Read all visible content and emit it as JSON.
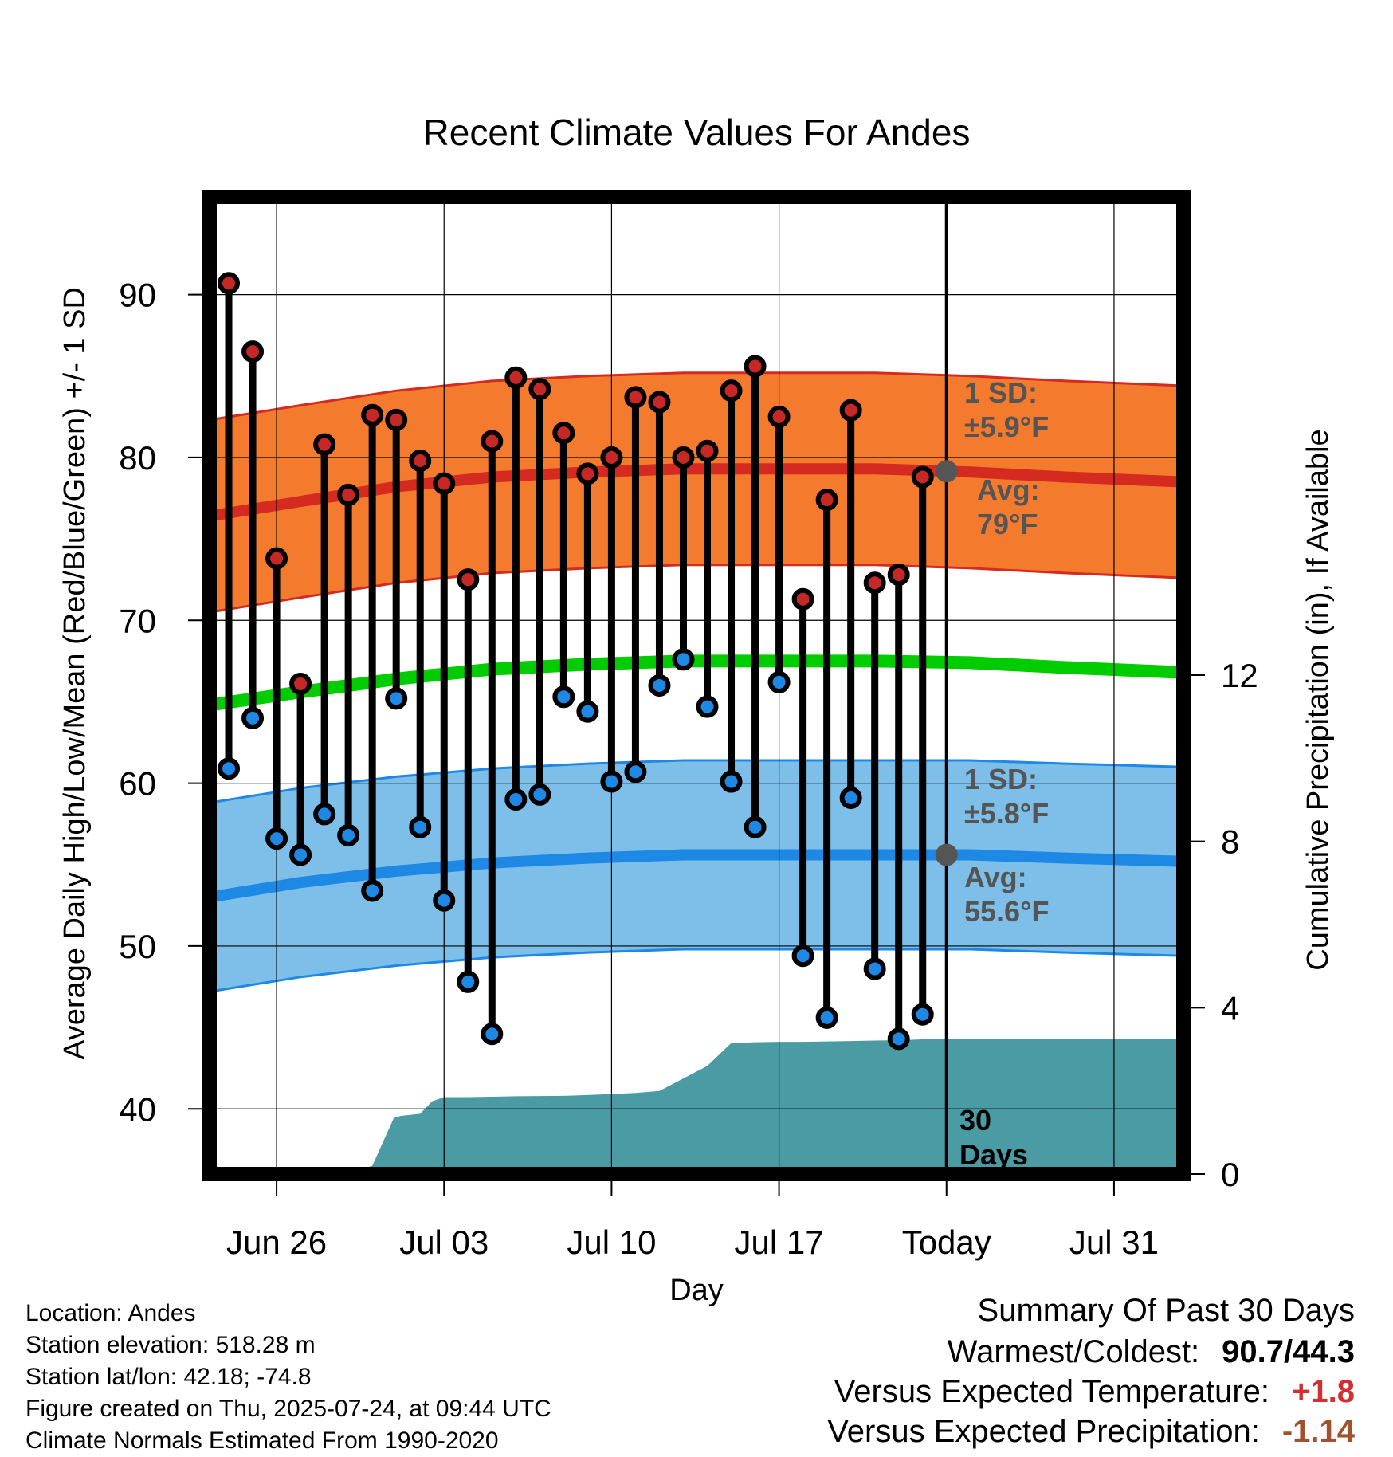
{
  "chart_data": {
    "type": "line",
    "title": "Recent Climate Values For Andes",
    "xlabel": "Day",
    "ylabel": "Average Daily High/Low/Mean (Red/Blue/Green) +/- 1 SD",
    "y2label": "Cumulative Precipitation (in), If Available",
    "ylim": [
      36,
      96
    ],
    "y2lim": [
      0,
      23.5
    ],
    "xlim": [
      -0.8,
      39.9
    ],
    "yticks": [
      "40",
      "50",
      "60",
      "70",
      "80",
      "90"
    ],
    "y2ticks": [
      "0",
      "4",
      "8",
      "12"
    ],
    "xticks": [
      {
        "x": 2,
        "label": "Jun 26"
      },
      {
        "x": 9,
        "label": "Jul 03"
      },
      {
        "x": 16,
        "label": "Jul 10"
      },
      {
        "x": 23,
        "label": "Jul 17"
      },
      {
        "x": 30,
        "label": "Today"
      },
      {
        "x": 37,
        "label": "Jul 31"
      }
    ],
    "grid": true,
    "today_x": 30,
    "days": [
      0,
      1,
      2,
      3,
      4,
      5,
      6,
      7,
      8,
      9,
      10,
      11,
      12,
      13,
      14,
      15,
      16,
      17,
      18,
      19,
      20,
      21,
      22,
      23,
      24,
      25,
      26,
      27,
      28,
      29
    ],
    "highs": [
      90.7,
      86.5,
      73.8,
      66.1,
      80.8,
      77.7,
      82.6,
      82.3,
      79.8,
      78.4,
      72.5,
      81.0,
      84.9,
      84.2,
      81.5,
      79.0,
      80.0,
      83.7,
      83.4,
      80.0,
      80.4,
      84.1,
      85.6,
      82.5,
      71.3,
      77.4,
      82.9,
      72.3,
      72.8,
      78.8
    ],
    "lows": [
      60.9,
      64.0,
      56.6,
      55.6,
      58.1,
      56.8,
      53.4,
      65.2,
      57.3,
      52.8,
      47.8,
      44.6,
      59.0,
      59.3,
      65.3,
      64.4,
      60.1,
      60.7,
      66.0,
      67.6,
      64.7,
      60.1,
      57.3,
      66.2,
      49.4,
      45.6,
      59.1,
      48.6,
      44.3,
      45.8
    ],
    "normals": {
      "x": [
        -0.8,
        3,
        7,
        11,
        15,
        19,
        23,
        27,
        31,
        35,
        39.9
      ],
      "high_avg": [
        76.4,
        77.3,
        78.2,
        78.8,
        79.1,
        79.3,
        79.3,
        79.3,
        79.1,
        78.8,
        78.5
      ],
      "high_sd": 5.9,
      "low_avg": [
        53.0,
        53.9,
        54.6,
        55.1,
        55.4,
        55.6,
        55.6,
        55.6,
        55.6,
        55.4,
        55.2
      ],
      "low_sd": 5.8,
      "mean_avg": [
        64.8,
        65.6,
        66.4,
        67.0,
        67.3,
        67.5,
        67.5,
        67.5,
        67.4,
        67.1,
        66.8
      ]
    },
    "precip": {
      "x": [
        -0.8,
        4.8,
        5.2,
        6.0,
        6.9,
        7.2,
        8.0,
        8.5,
        9.0,
        10.0,
        12.0,
        14.0,
        15.0,
        17.0,
        18.0,
        19.0,
        20.0,
        21.0,
        22.0,
        23.0,
        24.0,
        25.0,
        26.0,
        27.0,
        28.0,
        29.0,
        30.0,
        39.9
      ],
      "y": [
        0,
        0,
        0.05,
        0.2,
        1.35,
        1.4,
        1.45,
        1.75,
        1.85,
        1.85,
        1.87,
        1.88,
        1.9,
        1.95,
        2.0,
        2.3,
        2.6,
        3.15,
        3.17,
        3.18,
        3.18,
        3.19,
        3.2,
        3.21,
        3.22,
        3.24,
        3.25,
        3.25
      ]
    },
    "annotations": {
      "high_sd_line1": "1 SD:",
      "high_sd_line2": "±5.9°F",
      "high_avg_line1": "Avg:",
      "high_avg_line2": "79°F",
      "low_sd_line1": "1 SD:",
      "low_sd_line2": "±5.8°F",
      "low_avg_line1": "Avg:",
      "low_avg_line2": "55.6°F",
      "days_line1": "30",
      "days_line2": "Days"
    },
    "colors": {
      "high_band": "#F47B2E",
      "high_band_edge": "#D42A20",
      "high_avg": "#D42A20",
      "low_band": "#7DBFE8",
      "low_band_edge": "#1E88E5",
      "low_avg": "#1E88E5",
      "mean": "#00CC00",
      "precip": "#4A9BA4",
      "high_marker": "#C62828",
      "low_marker": "#1E88E5",
      "avg_marker": "#555555"
    }
  },
  "footer": {
    "location": "Location: Andes",
    "elevation": "Station elevation: 518.28 m",
    "latlon": "Station lat/lon: 42.18; -74.8",
    "created": "Figure created on Thu, 2025-07-24, at 09:44 UTC",
    "normals": "Climate Normals Estimated From 1990-2020"
  },
  "summary": {
    "heading": "Summary Of Past 30 Days",
    "warmest_label": "Warmest/Coldest:",
    "warmest_value": "90.7/44.3",
    "temp_label": "Versus Expected Temperature:",
    "temp_value": "+1.8",
    "temp_color": "#D32F2F",
    "precip_label": "Versus Expected Precipitation:",
    "precip_value": "-1.14",
    "precip_color": "#A0522D"
  }
}
